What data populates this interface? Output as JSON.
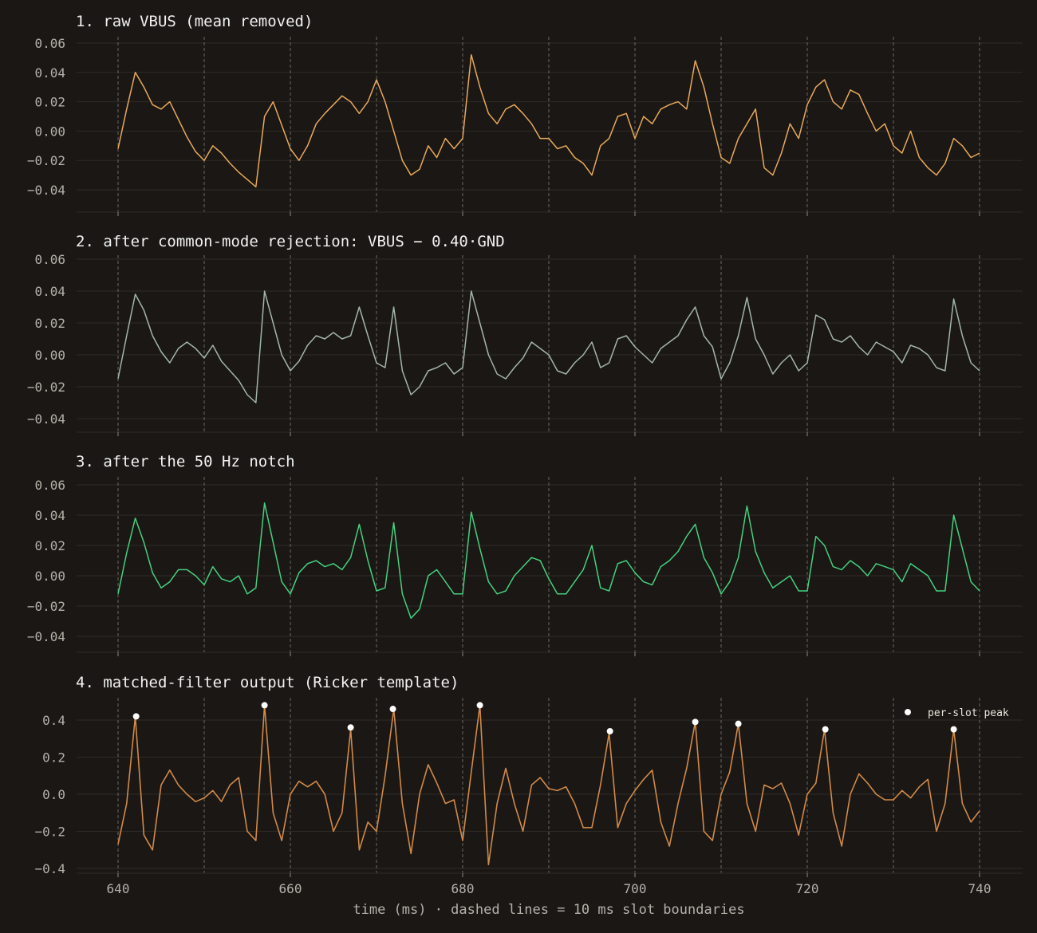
{
  "chart_data": [
    {
      "type": "line",
      "title": "1. raw VBUS (mean removed)",
      "xlim": [
        640,
        740
      ],
      "ylim": [
        -0.05,
        0.06
      ],
      "yticks": [
        0.06,
        0.04,
        0.02,
        0.0,
        -0.02,
        -0.04
      ],
      "ytick_labels": [
        "0.06",
        "0.04",
        "0.02",
        "0.00",
        "−0.02",
        "−0.04"
      ],
      "grid": true,
      "color": "#e8a95c",
      "series": [
        {
          "x": [
            640,
            641,
            642,
            643,
            644,
            645,
            646,
            647,
            648,
            649,
            650,
            651,
            652,
            653,
            654,
            655,
            656,
            657,
            658,
            659,
            660,
            661,
            662,
            663,
            664,
            665,
            666,
            667,
            668,
            669,
            670,
            671,
            672,
            673,
            674,
            675,
            676,
            677,
            678,
            679,
            680,
            681,
            682,
            683,
            684,
            685,
            686,
            687,
            688,
            689,
            690,
            691,
            692,
            693,
            694,
            695,
            696,
            697,
            698,
            699,
            700,
            701,
            702,
            703,
            704,
            705,
            706,
            707,
            708,
            709,
            710,
            711,
            712,
            713,
            714,
            715,
            716,
            717,
            718,
            719,
            720,
            721,
            722,
            723,
            724,
            725,
            726,
            727,
            728,
            729,
            730,
            731,
            732,
            733,
            734,
            735,
            736,
            737,
            738,
            739,
            740
          ],
          "y": [
            -0.012,
            0.015,
            0.04,
            0.03,
            0.018,
            0.015,
            0.02,
            0.008,
            -0.004,
            -0.014,
            -0.02,
            -0.01,
            -0.015,
            -0.022,
            -0.028,
            -0.033,
            -0.038,
            0.01,
            0.02,
            0.004,
            -0.012,
            -0.02,
            -0.01,
            0.005,
            0.012,
            0.018,
            0.024,
            0.02,
            0.012,
            0.02,
            0.035,
            0.02,
            0.0,
            -0.02,
            -0.03,
            -0.026,
            -0.01,
            -0.018,
            -0.005,
            -0.012,
            -0.005,
            0.052,
            0.03,
            0.012,
            0.005,
            0.015,
            0.018,
            0.012,
            0.005,
            -0.005,
            -0.005,
            -0.012,
            -0.01,
            -0.018,
            -0.022,
            -0.03,
            -0.01,
            -0.005,
            0.01,
            0.012,
            -0.005,
            0.01,
            0.005,
            0.015,
            0.018,
            0.02,
            0.015,
            0.048,
            0.03,
            0.005,
            -0.018,
            -0.022,
            -0.005,
            0.005,
            0.015,
            -0.025,
            -0.03,
            -0.015,
            0.005,
            -0.005,
            0.018,
            0.03,
            0.035,
            0.02,
            0.015,
            0.028,
            0.025,
            0.012,
            0.0,
            0.005,
            -0.01,
            -0.015,
            0.0,
            -0.018,
            -0.025,
            -0.03,
            -0.022,
            -0.005,
            -0.01,
            -0.018,
            -0.015
          ]
        }
      ]
    },
    {
      "type": "line",
      "title": "2. after common-mode rejection: VBUS − 0.40·GND",
      "xlim": [
        640,
        740
      ],
      "ylim": [
        -0.048,
        0.06
      ],
      "yticks": [
        0.06,
        0.04,
        0.02,
        0.0,
        -0.02,
        -0.04
      ],
      "ytick_labels": [
        "0.06",
        "0.04",
        "0.02",
        "0.00",
        "−0.02",
        "−0.04"
      ],
      "grid": true,
      "color": "#a3b5ac",
      "series": [
        {
          "x": [
            640,
            641,
            642,
            643,
            644,
            645,
            646,
            647,
            648,
            649,
            650,
            651,
            652,
            653,
            654,
            655,
            656,
            657,
            658,
            659,
            660,
            661,
            662,
            663,
            664,
            665,
            666,
            667,
            668,
            669,
            670,
            671,
            672,
            673,
            674,
            675,
            676,
            677,
            678,
            679,
            680,
            681,
            682,
            683,
            684,
            685,
            686,
            687,
            688,
            689,
            690,
            691,
            692,
            693,
            694,
            695,
            696,
            697,
            698,
            699,
            700,
            701,
            702,
            703,
            704,
            705,
            706,
            707,
            708,
            709,
            710,
            711,
            712,
            713,
            714,
            715,
            716,
            717,
            718,
            719,
            720,
            721,
            722,
            723,
            724,
            725,
            726,
            727,
            728,
            729,
            730,
            731,
            732,
            733,
            734,
            735,
            736,
            737,
            738,
            739,
            740
          ],
          "y": [
            -0.015,
            0.012,
            0.038,
            0.028,
            0.012,
            0.002,
            -0.005,
            0.004,
            0.008,
            0.004,
            -0.002,
            0.006,
            -0.004,
            -0.01,
            -0.016,
            -0.025,
            -0.03,
            0.04,
            0.02,
            0.0,
            -0.01,
            -0.004,
            0.006,
            0.012,
            0.01,
            0.014,
            0.01,
            0.012,
            0.03,
            0.012,
            -0.005,
            -0.008,
            0.03,
            -0.01,
            -0.025,
            -0.02,
            -0.01,
            -0.008,
            -0.005,
            -0.012,
            -0.008,
            0.04,
            0.02,
            0.0,
            -0.012,
            -0.015,
            -0.008,
            -0.002,
            0.008,
            0.004,
            0.0,
            -0.01,
            -0.012,
            -0.005,
            0.0,
            0.008,
            -0.008,
            -0.005,
            0.01,
            0.012,
            0.005,
            0.0,
            -0.005,
            0.004,
            0.008,
            0.012,
            0.022,
            0.03,
            0.012,
            0.005,
            -0.015,
            -0.005,
            0.012,
            0.036,
            0.01,
            0.0,
            -0.012,
            -0.005,
            0.0,
            -0.01,
            -0.005,
            0.025,
            0.022,
            0.01,
            0.008,
            0.012,
            0.005,
            0.0,
            0.008,
            0.005,
            0.002,
            -0.005,
            0.006,
            0.004,
            0.0,
            -0.008,
            -0.01,
            0.035,
            0.012,
            -0.005,
            -0.01
          ]
        }
      ]
    },
    {
      "type": "line",
      "title": "3. after the 50 Hz notch",
      "xlim": [
        640,
        740
      ],
      "ylim": [
        -0.052,
        0.062
      ],
      "yticks": [
        0.06,
        0.04,
        0.02,
        0.0,
        -0.02,
        -0.04
      ],
      "ytick_labels": [
        "0.06",
        "0.04",
        "0.02",
        "0.00",
        "−0.02",
        "−0.04"
      ],
      "grid": true,
      "color": "#46d07e",
      "series": [
        {
          "x": [
            640,
            641,
            642,
            643,
            644,
            645,
            646,
            647,
            648,
            649,
            650,
            651,
            652,
            653,
            654,
            655,
            656,
            657,
            658,
            659,
            660,
            661,
            662,
            663,
            664,
            665,
            666,
            667,
            668,
            669,
            670,
            671,
            672,
            673,
            674,
            675,
            676,
            677,
            678,
            679,
            680,
            681,
            682,
            683,
            684,
            685,
            686,
            687,
            688,
            689,
            690,
            691,
            692,
            693,
            694,
            695,
            696,
            697,
            698,
            699,
            700,
            701,
            702,
            703,
            704,
            705,
            706,
            707,
            708,
            709,
            710,
            711,
            712,
            713,
            714,
            715,
            716,
            717,
            718,
            719,
            720,
            721,
            722,
            723,
            724,
            725,
            726,
            727,
            728,
            729,
            730,
            731,
            732,
            733,
            734,
            735,
            736,
            737,
            738,
            739,
            740
          ],
          "y": [
            -0.012,
            0.015,
            0.038,
            0.022,
            0.002,
            -0.008,
            -0.004,
            0.004,
            0.004,
            0.0,
            -0.006,
            0.006,
            -0.002,
            -0.004,
            0.0,
            -0.012,
            -0.008,
            0.048,
            0.022,
            -0.004,
            -0.012,
            0.002,
            0.008,
            0.01,
            0.006,
            0.008,
            0.004,
            0.012,
            0.034,
            0.01,
            -0.01,
            -0.008,
            0.035,
            -0.012,
            -0.028,
            -0.022,
            0.0,
            0.004,
            -0.004,
            -0.012,
            -0.012,
            0.042,
            0.018,
            -0.004,
            -0.012,
            -0.01,
            0.0,
            0.006,
            0.012,
            0.01,
            -0.002,
            -0.012,
            -0.012,
            -0.004,
            0.004,
            0.02,
            -0.008,
            -0.01,
            0.008,
            0.01,
            0.002,
            -0.004,
            -0.006,
            0.006,
            0.01,
            0.016,
            0.026,
            0.034,
            0.012,
            0.002,
            -0.012,
            -0.004,
            0.012,
            0.046,
            0.016,
            0.002,
            -0.008,
            -0.004,
            0.0,
            -0.01,
            -0.01,
            0.026,
            0.02,
            0.006,
            0.004,
            0.01,
            0.006,
            0.0,
            0.008,
            0.006,
            0.004,
            -0.004,
            0.008,
            0.004,
            0.0,
            -0.01,
            -0.01,
            0.04,
            0.018,
            -0.004,
            -0.01
          ]
        }
      ]
    },
    {
      "type": "line",
      "title": "4. matched-filter output (Ricker template)",
      "xlim": [
        640,
        740
      ],
      "ylim": [
        -0.4,
        0.52
      ],
      "yticks": [
        0.4,
        0.2,
        0.0,
        -0.2,
        -0.4
      ],
      "ytick_labels": [
        "0.4",
        "0.2",
        "0.0",
        "−0.2",
        "−0.4"
      ],
      "xticks": [
        640,
        660,
        680,
        700,
        720,
        740
      ],
      "xtick_labels": [
        "640",
        "660",
        "680",
        "700",
        "720",
        "740"
      ],
      "xlabel": "time (ms)  ·  dashed lines = 10 ms slot boundaries",
      "grid": true,
      "color": "#d18a4a",
      "legend": {
        "label": "per-slot peak",
        "position": "top-right",
        "marker_color": "#ffffff"
      },
      "peaks": {
        "x": [
          642.1,
          657.0,
          667.0,
          671.9,
          682.0,
          697.1,
          707.0,
          712.0,
          722.1,
          737.0
        ],
        "y": [
          0.42,
          0.48,
          0.36,
          0.46,
          0.48,
          0.34,
          0.39,
          0.38,
          0.35,
          0.35
        ]
      },
      "series": [
        {
          "x": [
            640,
            641,
            642,
            643,
            644,
            645,
            646,
            647,
            648,
            649,
            650,
            651,
            652,
            653,
            654,
            655,
            656,
            657,
            658,
            659,
            660,
            661,
            662,
            663,
            664,
            665,
            666,
            667,
            668,
            669,
            670,
            671,
            672,
            673,
            674,
            675,
            676,
            677,
            678,
            679,
            680,
            681,
            682,
            683,
            684,
            685,
            686,
            687,
            688,
            689,
            690,
            691,
            692,
            693,
            694,
            695,
            696,
            697,
            698,
            699,
            700,
            701,
            702,
            703,
            704,
            705,
            706,
            707,
            708,
            709,
            710,
            711,
            712,
            713,
            714,
            715,
            716,
            717,
            718,
            719,
            720,
            721,
            722,
            723,
            724,
            725,
            726,
            727,
            728,
            729,
            730,
            731,
            732,
            733,
            734,
            735,
            736,
            737,
            738,
            739,
            740
          ],
          "y": [
            -0.27,
            -0.05,
            0.42,
            -0.22,
            -0.3,
            0.05,
            0.13,
            0.05,
            0.0,
            -0.04,
            -0.02,
            0.02,
            -0.04,
            0.05,
            0.09,
            -0.2,
            -0.25,
            0.48,
            -0.1,
            -0.25,
            0.0,
            0.07,
            0.04,
            0.07,
            0.0,
            -0.2,
            -0.1,
            0.35,
            -0.3,
            -0.15,
            -0.2,
            0.1,
            0.46,
            -0.05,
            -0.32,
            0.0,
            0.16,
            0.06,
            -0.05,
            -0.03,
            -0.25,
            0.12,
            0.48,
            -0.38,
            -0.05,
            0.14,
            -0.05,
            -0.2,
            0.05,
            0.09,
            0.03,
            0.02,
            0.04,
            -0.05,
            -0.18,
            -0.18,
            0.05,
            0.33,
            -0.18,
            -0.05,
            0.02,
            0.08,
            0.13,
            -0.15,
            -0.28,
            -0.05,
            0.14,
            0.39,
            -0.2,
            -0.25,
            0.0,
            0.12,
            0.38,
            -0.05,
            -0.2,
            0.05,
            0.03,
            0.06,
            -0.05,
            -0.22,
            0.0,
            0.06,
            0.35,
            -0.1,
            -0.28,
            0.0,
            0.11,
            0.06,
            0.0,
            -0.03,
            -0.03,
            0.02,
            -0.02,
            0.04,
            0.08,
            -0.2,
            -0.05,
            0.35,
            -0.05,
            -0.15,
            -0.09
          ]
        }
      ]
    }
  ]
}
